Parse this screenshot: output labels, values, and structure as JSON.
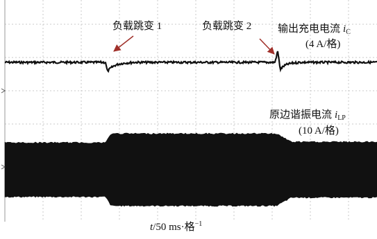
{
  "annotations": {
    "jump1": "负载跳变 1",
    "jump2": "负载跳变 2"
  },
  "traces": [
    {
      "label": "输出充电电流",
      "symbol": "i",
      "subscript": "C",
      "scale": "(4 A/格)"
    },
    {
      "label": "原边谐振电流",
      "symbol": "i",
      "subscript": "LP",
      "scale": "(10 A/格)"
    }
  ],
  "x_axis": {
    "symbol": "t",
    "label": "/50 ms·格",
    "superscript": "−1"
  }
}
